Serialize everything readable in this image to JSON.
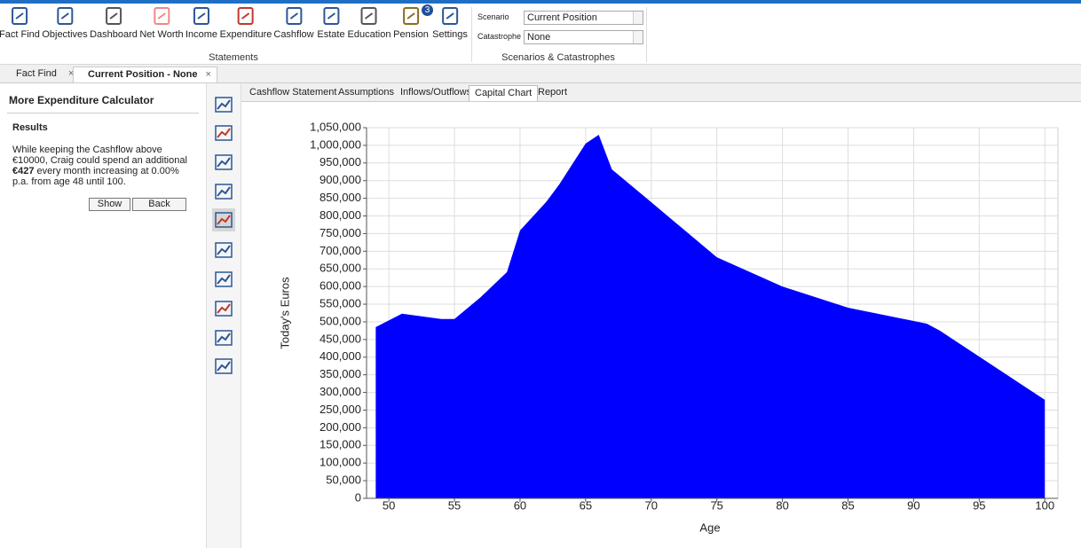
{
  "toolbar": {
    "items": [
      "Fact Find",
      "Objectives",
      "Dashboard",
      "Net Worth",
      "Income",
      "Expenditure",
      "Cashflow",
      "Estate",
      "Education",
      "Pension",
      "Settings"
    ],
    "pension_badge": "3",
    "groups": [
      "Statements",
      "Scenarios & Catastrophes"
    ]
  },
  "scenarios": {
    "scenario_label": "Scenario",
    "scenario_value": "Current Position",
    "catastrophe_label": "Catastrophe",
    "catastrophe_value": "None"
  },
  "doc_tabs": [
    "Fact Find",
    "Current Position - None"
  ],
  "panel": {
    "title": "More Expenditure Calculator",
    "heading": "Results",
    "text_before": "While keeping the Cashflow above €10000, Craig could spend an additional",
    "amount": "€427",
    "text_after": "every month increasing at 0.00% p.a. from age 48 until 100.",
    "buttons": [
      "Show",
      "Back"
    ]
  },
  "sub_tabs": [
    "Cashflow Statement",
    "Assumptions",
    "Inflows/Outflows",
    "Capital Chart",
    "Report"
  ],
  "active_sub_tab": 3,
  "chart_data": {
    "type": "area",
    "x_label": "Age",
    "y_label": "Today's Euros",
    "color": "#0000ff",
    "grid": true,
    "x": [
      49,
      51,
      54,
      55,
      57,
      59,
      60,
      62,
      63,
      65,
      66,
      67,
      70,
      75,
      80,
      85,
      91,
      92,
      100
    ],
    "values": [
      485000,
      523000,
      508000,
      508000,
      570000,
      641000,
      759000,
      840000,
      890000,
      1005000,
      1030000,
      932000,
      839000,
      683000,
      600000,
      540000,
      495000,
      475000,
      279000
    ],
    "xlim": [
      48.3,
      101
    ],
    "xticks": [
      50,
      55,
      60,
      65,
      70,
      75,
      80,
      85,
      90,
      95,
      100
    ],
    "ylim": [
      0,
      1050000
    ],
    "yticks": [
      0,
      {
        "value": 50000,
        "label": "50,000"
      },
      {
        "value": 100000,
        "label": "100,000"
      },
      {
        "value": 150000,
        "label": "150,000"
      },
      {
        "value": 200000,
        "label": "200,000"
      },
      {
        "value": 250000,
        "label": "250,000"
      },
      {
        "value": 300000,
        "label": "300,000"
      },
      {
        "value": 350000,
        "label": "350,000"
      },
      {
        "value": 400000,
        "label": "400,000"
      },
      {
        "value": 450000,
        "label": "450,000"
      },
      {
        "value": 500000,
        "label": "500,000"
      },
      {
        "value": 550000,
        "label": "550,000"
      },
      {
        "value": 600000,
        "label": "600,000"
      },
      {
        "value": 650000,
        "label": "650,000"
      },
      {
        "value": 700000,
        "label": "700,000"
      },
      {
        "value": 750000,
        "label": "750,000"
      },
      {
        "value": 800000,
        "label": "800,000"
      },
      {
        "value": 850000,
        "label": "850,000"
      },
      {
        "value": 900000,
        "label": "900,000"
      },
      {
        "value": 950000,
        "label": "950,000"
      },
      {
        "value": 1000000,
        "label": "1,000,000"
      },
      {
        "value": 1050000,
        "label": "1,050,000"
      }
    ]
  }
}
